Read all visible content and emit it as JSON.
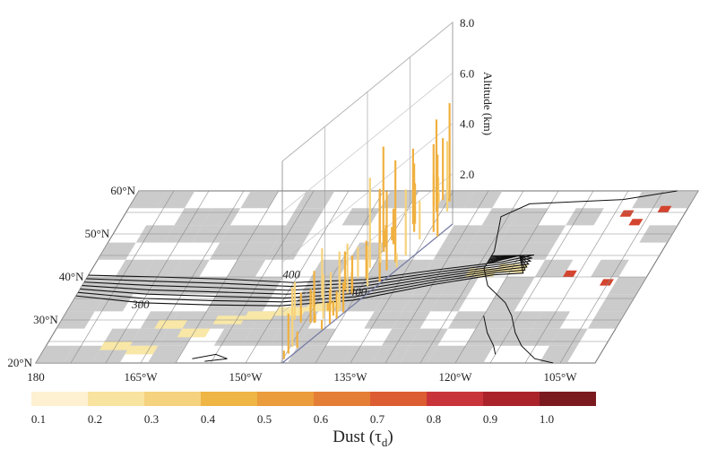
{
  "map": {
    "lat_labels": [
      "60°N",
      "50°N",
      "40°N",
      "30°N",
      "20°N"
    ],
    "lon_labels": [
      "180",
      "165°W",
      "150°W",
      "135°W",
      "120°W",
      "105°W"
    ],
    "contour_labels": [
      "300",
      "400",
      "400"
    ]
  },
  "altitude_axis": {
    "label": "Altitude (km)",
    "ticks": [
      "2.0",
      "4.0",
      "6.0",
      "8.0"
    ]
  },
  "colorbar": {
    "label": [
      "Dust (τ",
      "d",
      ")"
    ],
    "ticks": [
      "0.1",
      "0.2",
      "0.3",
      "0.4",
      "0.5",
      "0.6",
      "0.7",
      "0.8",
      "0.9",
      "1.0"
    ],
    "colors": [
      "#fdf1d2",
      "#f9e3a0",
      "#f5d27e",
      "#efb545",
      "#eb9c3c",
      "#e47e36",
      "#dc5d31",
      "#c9343a",
      "#aa232b",
      "#7a1a1f"
    ]
  }
}
